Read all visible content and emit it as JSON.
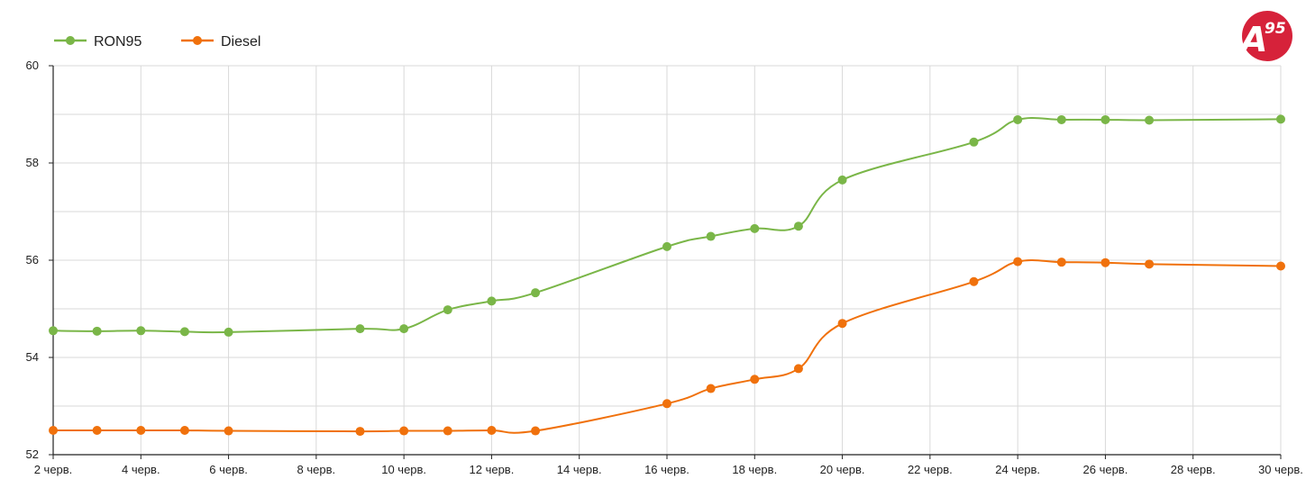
{
  "chart_data": {
    "type": "line",
    "x_ticks": [
      "2 черв.",
      "4 черв.",
      "6 черв.",
      "8 черв.",
      "10 черв.",
      "12 черв.",
      "14 черв.",
      "16 черв.",
      "18 черв.",
      "20 черв.",
      "22 черв.",
      "24 черв.",
      "26 черв.",
      "28 черв.",
      "30 черв."
    ],
    "y_ticks": [
      "52",
      "54",
      "56",
      "58",
      "60"
    ],
    "ylim": [
      52,
      60
    ],
    "xlim_days": [
      2,
      30
    ],
    "grid": true,
    "legend_position": "top-left",
    "series": [
      {
        "name": "RON95",
        "color": "#7ab648",
        "points": [
          {
            "day": 2,
            "value": 54.55
          },
          {
            "day": 3,
            "value": 54.54
          },
          {
            "day": 4,
            "value": 54.55
          },
          {
            "day": 5,
            "value": 54.53
          },
          {
            "day": 6,
            "value": 54.52
          },
          {
            "day": 9,
            "value": 54.59
          },
          {
            "day": 10,
            "value": 54.59
          },
          {
            "day": 11,
            "value": 54.98
          },
          {
            "day": 12,
            "value": 55.16
          },
          {
            "day": 13,
            "value": 55.33
          },
          {
            "day": 16,
            "value": 56.28
          },
          {
            "day": 17,
            "value": 56.49
          },
          {
            "day": 18,
            "value": 56.65
          },
          {
            "day": 19,
            "value": 56.7
          },
          {
            "day": 20,
            "value": 57.65
          },
          {
            "day": 23,
            "value": 58.43
          },
          {
            "day": 24,
            "value": 58.89
          },
          {
            "day": 25,
            "value": 58.89
          },
          {
            "day": 26,
            "value": 58.89
          },
          {
            "day": 27,
            "value": 58.88
          },
          {
            "day": 30,
            "value": 58.9
          }
        ]
      },
      {
        "name": "Diesel",
        "color": "#f0710c",
        "points": [
          {
            "day": 2,
            "value": 52.5
          },
          {
            "day": 3,
            "value": 52.5
          },
          {
            "day": 4,
            "value": 52.5
          },
          {
            "day": 5,
            "value": 52.5
          },
          {
            "day": 6,
            "value": 52.49
          },
          {
            "day": 9,
            "value": 52.48
          },
          {
            "day": 10,
            "value": 52.49
          },
          {
            "day": 11,
            "value": 52.49
          },
          {
            "day": 12,
            "value": 52.5
          },
          {
            "day": 13,
            "value": 52.49
          },
          {
            "day": 16,
            "value": 53.05
          },
          {
            "day": 17,
            "value": 53.36
          },
          {
            "day": 18,
            "value": 53.55
          },
          {
            "day": 19,
            "value": 53.77
          },
          {
            "day": 20,
            "value": 54.7
          },
          {
            "day": 23,
            "value": 55.56
          },
          {
            "day": 24,
            "value": 55.97
          },
          {
            "day": 25,
            "value": 55.96
          },
          {
            "day": 26,
            "value": 55.95
          },
          {
            "day": 27,
            "value": 55.92
          },
          {
            "day": 30,
            "value": 55.88
          }
        ]
      }
    ]
  },
  "logo": {
    "letter": "A",
    "number": "95",
    "color": "#d6223a"
  }
}
